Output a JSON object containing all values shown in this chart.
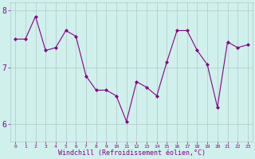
{
  "x": [
    0,
    1,
    2,
    3,
    4,
    5,
    6,
    7,
    8,
    9,
    10,
    11,
    12,
    13,
    14,
    15,
    16,
    17,
    18,
    19,
    20,
    21,
    22,
    23
  ],
  "y": [
    7.5,
    7.5,
    7.9,
    7.3,
    7.35,
    7.65,
    7.55,
    6.85,
    6.6,
    6.6,
    6.5,
    6.05,
    6.75,
    6.65,
    6.5,
    7.1,
    7.65,
    7.65,
    7.3,
    7.05,
    6.3,
    7.45,
    7.35,
    7.4
  ],
  "line_color": "#880088",
  "marker": "D",
  "marker_size": 2,
  "bg_color": "#d0f0ec",
  "grid_color": "#b0c8c8",
  "xlabel": "Windchill (Refroidissement éolien,°C)",
  "xlabel_color": "#880088",
  "tick_color": "#880088",
  "ytick_labels": [
    "6",
    "7",
    "8"
  ],
  "ytick_vals": [
    6,
    7,
    8
  ],
  "xtick_labels": [
    "0",
    "1",
    "2",
    "3",
    "4",
    "5",
    "6",
    "7",
    "8",
    "9",
    "10",
    "11",
    "12",
    "13",
    "14",
    "15",
    "16",
    "17",
    "18",
    "19",
    "20",
    "21",
    "22",
    "23"
  ],
  "ylim": [
    5.7,
    8.15
  ],
  "xlim": [
    -0.5,
    23.5
  ]
}
